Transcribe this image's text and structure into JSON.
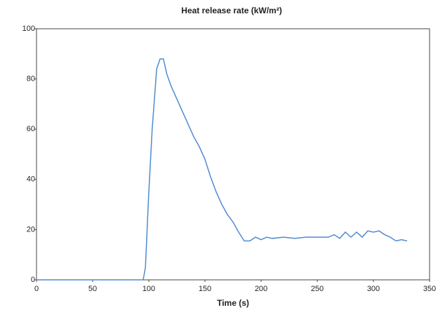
{
  "chart_data": {
    "type": "line",
    "title": "Heat release rate (kW/m²)",
    "x_label": "Time (s)",
    "x": [
      0,
      50,
      90,
      95,
      97,
      100,
      103,
      105,
      107,
      110,
      113,
      116,
      120,
      125,
      130,
      135,
      140,
      145,
      150,
      155,
      160,
      165,
      170,
      175,
      180,
      185,
      190,
      195,
      200,
      205,
      210,
      220,
      230,
      240,
      250,
      260,
      265,
      270,
      275,
      280,
      285,
      290,
      295,
      300,
      305,
      310,
      315,
      320,
      325,
      330
    ],
    "series": [
      {
        "color": "#4f8ccf",
        "values": [
          0,
          0,
          0,
          0,
          5,
          35,
          60,
          72,
          84,
          88,
          88,
          82,
          77,
          72,
          67,
          62,
          57,
          53,
          48,
          41,
          35,
          30,
          26,
          23,
          19,
          15.5,
          15.5,
          17,
          16,
          17,
          16.5,
          17,
          16.5,
          17,
          17,
          17,
          18,
          16.5,
          19,
          17,
          19,
          17,
          19.5,
          19,
          19.5,
          18,
          17,
          15.5,
          16,
          15.5
        ]
      }
    ],
    "xlim": [
      0,
      350
    ],
    "xticks": [
      0,
      50,
      100,
      150,
      200,
      250,
      300,
      350
    ],
    "ylim": [
      0,
      100
    ],
    "yticks": [
      0,
      20,
      40,
      60,
      80,
      100
    ],
    "grid": false
  }
}
